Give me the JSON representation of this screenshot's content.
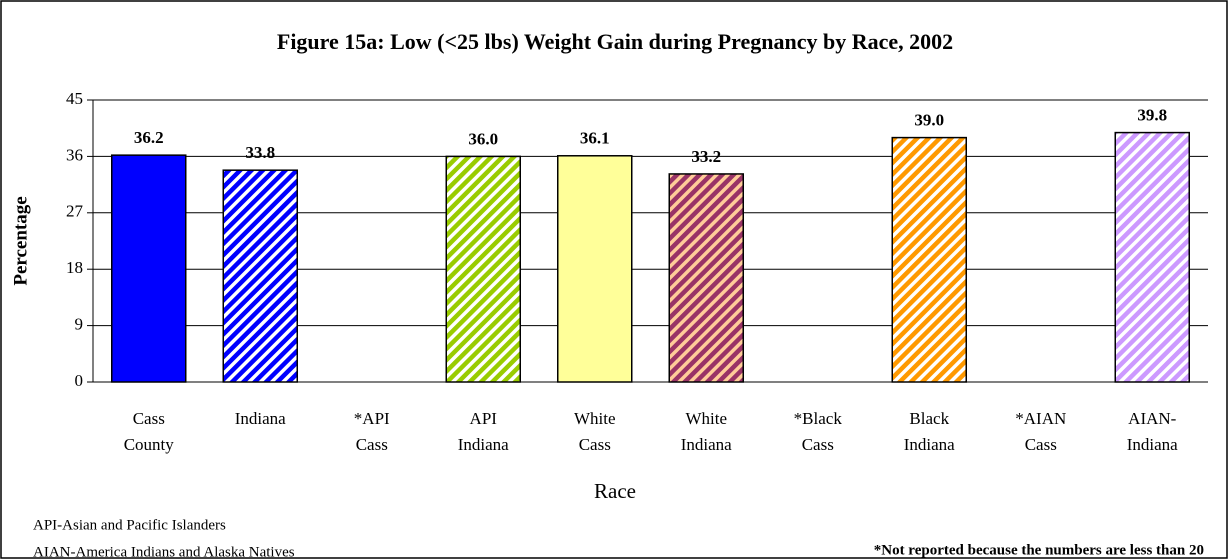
{
  "chart_data": {
    "type": "bar",
    "title": "Figure 15a: Low (<25 lbs) Weight Gain during Pregnancy by Race, 2002",
    "x_label": "Race",
    "y_label": "Percentage",
    "categories": [
      "Cass County",
      "Indiana",
      "*API Cass",
      "API Indiana",
      "White Cass",
      "White Indiana",
      "*Black Cass",
      "Black Indiana",
      "*AIAN Cass",
      "AIAN-Indiana"
    ],
    "values": [
      36.2,
      33.8,
      null,
      36.0,
      36.1,
      33.2,
      null,
      39.0,
      null,
      39.8
    ],
    "value_labels": [
      "36.2",
      "33.8",
      null,
      "36.0",
      "36.1",
      "33.2",
      null,
      "39.0",
      null,
      "39.8"
    ],
    "colors": [
      "#0000ff",
      "#0000ff",
      null,
      "#99cc00",
      "#ffff99",
      "#993366",
      null,
      "#ff9900",
      null,
      "#cc99ff"
    ],
    "hatched": [
      false,
      true,
      false,
      true,
      false,
      true,
      false,
      true,
      false,
      true
    ],
    "ylim": [
      0,
      45
    ],
    "yticks": [
      0,
      9,
      18,
      27,
      36,
      45
    ],
    "grid": true,
    "notes": [
      "API-Asian and Pacific Islanders",
      "AIAN-America Indians and Alaska Natives"
    ],
    "footnote": "*Not reported because the numbers are less than 20"
  }
}
